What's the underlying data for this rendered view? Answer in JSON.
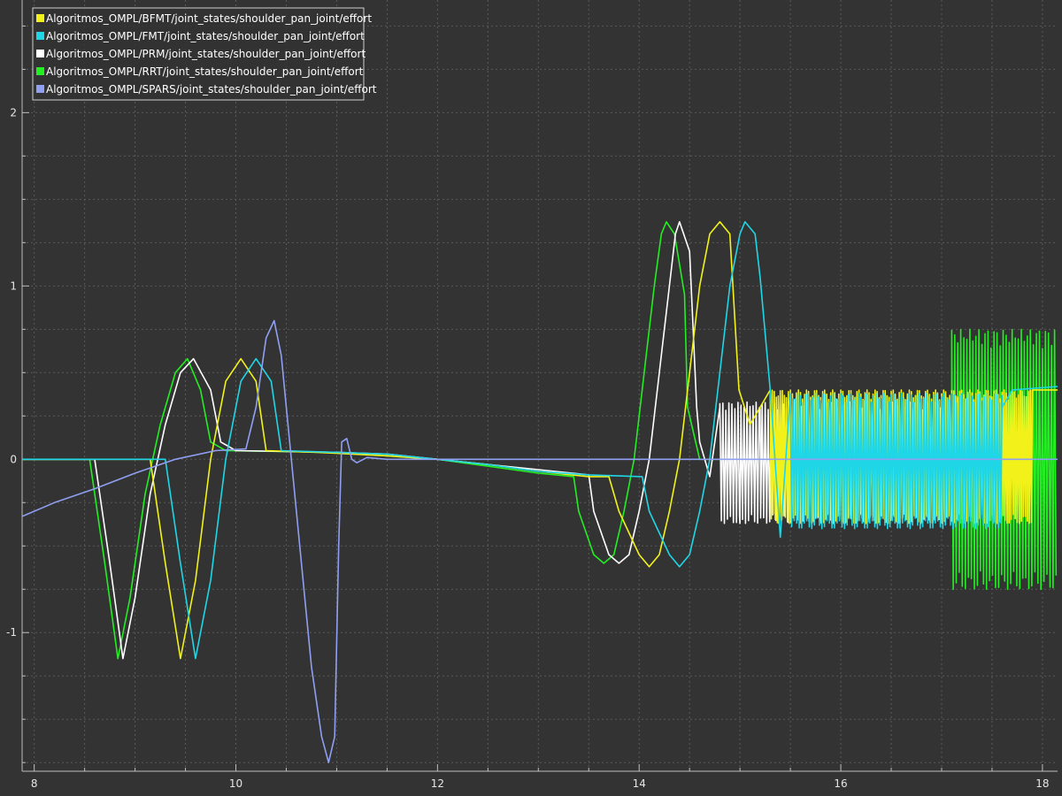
{
  "chart_data": {
    "type": "line",
    "title": "",
    "xlabel": "",
    "ylabel": "",
    "xlim": [
      7.88,
      18.15
    ],
    "ylim": [
      -1.8,
      2.65
    ],
    "x_ticks": [
      8,
      10,
      12,
      14,
      16,
      18
    ],
    "x_tick_labels": [
      "8",
      "10",
      "12",
      "14",
      "16",
      "18"
    ],
    "y_ticks": [
      -1,
      0,
      1,
      2
    ],
    "y_tick_labels": [
      "-1",
      "0",
      "1",
      "2"
    ],
    "grid": true,
    "legend_position": "top-left",
    "colors": {
      "background": "#333333",
      "grid": "#5a5a5a",
      "axis": "#bdbdbd",
      "legend_border": "#cfcfcf"
    },
    "series": [
      {
        "name": "Algoritmos_OMPL/BFMT/joint_states/shoulder_pan_joint/effort",
        "color": "#f2f21a",
        "points": [
          [
            7.88,
            0
          ],
          [
            9.15,
            0
          ],
          [
            9.3,
            -0.6
          ],
          [
            9.45,
            -1.15
          ],
          [
            9.6,
            -0.7
          ],
          [
            9.75,
            0
          ],
          [
            9.9,
            0.45
          ],
          [
            10.05,
            0.58
          ],
          [
            10.2,
            0.45
          ],
          [
            10.3,
            0.05
          ],
          [
            10.8,
            0.04
          ],
          [
            11.5,
            0.02
          ],
          [
            12,
            0
          ],
          [
            12.5,
            -0.03
          ],
          [
            13,
            -0.07
          ],
          [
            13.5,
            -0.1
          ],
          [
            13.7,
            -0.1
          ],
          [
            13.8,
            -0.3
          ],
          [
            14,
            -0.55
          ],
          [
            14.1,
            -0.62
          ],
          [
            14.2,
            -0.55
          ],
          [
            14.3,
            -0.3
          ],
          [
            14.4,
            0
          ],
          [
            14.5,
            0.5
          ],
          [
            14.6,
            1
          ],
          [
            14.7,
            1.3
          ],
          [
            14.8,
            1.37
          ],
          [
            14.9,
            1.3
          ],
          [
            14.99,
            0.4
          ],
          [
            15.1,
            0.2
          ],
          [
            15.3,
            0.4
          ],
          [
            17.9,
            0.4
          ],
          [
            18.15,
            0.4
          ]
        ],
        "noise": {
          "from": 15.3,
          "to": 17.9,
          "period": 0.02,
          "high": 0.4,
          "low": -0.37
        }
      },
      {
        "name": "Algoritmos_OMPL/FMT/joint_states/shoulder_pan_joint/effort",
        "color": "#1fd6e6",
        "points": [
          [
            7.88,
            0
          ],
          [
            9.3,
            0
          ],
          [
            9.45,
            -0.6
          ],
          [
            9.6,
            -1.15
          ],
          [
            9.75,
            -0.7
          ],
          [
            9.9,
            0
          ],
          [
            10.05,
            0.45
          ],
          [
            10.2,
            0.58
          ],
          [
            10.35,
            0.45
          ],
          [
            10.45,
            0.05
          ],
          [
            11,
            0.04
          ],
          [
            11.5,
            0.03
          ],
          [
            12,
            0
          ],
          [
            12.5,
            -0.03
          ],
          [
            13,
            -0.07
          ],
          [
            13.5,
            -0.09
          ],
          [
            14.03,
            -0.1
          ],
          [
            14.1,
            -0.3
          ],
          [
            14.3,
            -0.55
          ],
          [
            14.4,
            -0.62
          ],
          [
            14.5,
            -0.55
          ],
          [
            14.6,
            -0.3
          ],
          [
            14.7,
            0
          ],
          [
            14.8,
            0.5
          ],
          [
            14.9,
            1
          ],
          [
            15,
            1.3
          ],
          [
            15.05,
            1.37
          ],
          [
            15.15,
            1.3
          ],
          [
            15.2,
            1.05
          ],
          [
            15.3,
            0.4
          ],
          [
            15.4,
            -0.45
          ],
          [
            15.6,
            0.3
          ],
          [
            17.6,
            0.3
          ],
          [
            17.7,
            0.4
          ],
          [
            18.15,
            0.42
          ]
        ],
        "noise": {
          "from": 15.5,
          "to": 17.6,
          "period": 0.025,
          "high": 0.38,
          "low": -0.4
        }
      },
      {
        "name": "Algoritmos_OMPL/PRM/joint_states/shoulder_pan_joint/effort",
        "color": "#ffffff",
        "points": [
          [
            7.88,
            0
          ],
          [
            8.6,
            0
          ],
          [
            8.75,
            -0.6
          ],
          [
            8.88,
            -1.15
          ],
          [
            9.0,
            -0.8
          ],
          [
            9.15,
            -0.2
          ],
          [
            9.3,
            0.2
          ],
          [
            9.45,
            0.5
          ],
          [
            9.58,
            0.58
          ],
          [
            9.75,
            0.4
          ],
          [
            9.85,
            0.1
          ],
          [
            10,
            0.05
          ],
          [
            11,
            0.04
          ],
          [
            11.5,
            0.03
          ],
          [
            12,
            0
          ],
          [
            12.5,
            -0.03
          ],
          [
            13,
            -0.06
          ],
          [
            13.5,
            -0.09
          ],
          [
            13.55,
            -0.3
          ],
          [
            13.7,
            -0.55
          ],
          [
            13.8,
            -0.6
          ],
          [
            13.9,
            -0.55
          ],
          [
            14,
            -0.3
          ],
          [
            14.1,
            0
          ],
          [
            14.2,
            0.5
          ],
          [
            14.3,
            1
          ],
          [
            14.36,
            1.3
          ],
          [
            14.4,
            1.37
          ],
          [
            14.5,
            1.2
          ],
          [
            14.57,
            0.3
          ],
          [
            14.6,
            0.1
          ],
          [
            14.7,
            -0.1
          ],
          [
            14.8,
            0.3
          ],
          [
            15,
            -0.37
          ],
          [
            15.2,
            0.3
          ],
          [
            15.5,
            0.3
          ]
        ],
        "noise": {
          "from": 14.8,
          "to": 17.1,
          "period": 0.03,
          "high": 0.33,
          "low": -0.37
        }
      },
      {
        "name": "Algoritmos_OMPL/RRT/joint_states/shoulder_pan_joint/effort",
        "color": "#22ee22",
        "points": [
          [
            7.88,
            0
          ],
          [
            8.55,
            0
          ],
          [
            8.7,
            -0.6
          ],
          [
            8.83,
            -1.15
          ],
          [
            8.95,
            -0.8
          ],
          [
            9.1,
            -0.2
          ],
          [
            9.25,
            0.2
          ],
          [
            9.4,
            0.5
          ],
          [
            9.52,
            0.58
          ],
          [
            9.65,
            0.4
          ],
          [
            9.75,
            0.1
          ],
          [
            9.9,
            0.05
          ],
          [
            11,
            0.04
          ],
          [
            11.5,
            0.02
          ],
          [
            12,
            0
          ],
          [
            12.5,
            -0.04
          ],
          [
            13,
            -0.08
          ],
          [
            13.35,
            -0.1
          ],
          [
            13.4,
            -0.3
          ],
          [
            13.55,
            -0.55
          ],
          [
            13.65,
            -0.6
          ],
          [
            13.75,
            -0.55
          ],
          [
            13.85,
            -0.3
          ],
          [
            13.95,
            0
          ],
          [
            14.05,
            0.5
          ],
          [
            14.15,
            1
          ],
          [
            14.22,
            1.3
          ],
          [
            14.27,
            1.37
          ],
          [
            14.35,
            1.3
          ],
          [
            14.45,
            0.95
          ],
          [
            14.48,
            0.3
          ],
          [
            14.6,
            0
          ],
          [
            15.3,
            0
          ],
          [
            17.1,
            0.2
          ]
        ],
        "noise": {
          "from": 17.1,
          "to": 18.15,
          "period": 0.03,
          "high": 0.75,
          "low": -0.75
        }
      },
      {
        "name": "Algoritmos_OMPL/SPARS/joint_states/shoulder_pan_joint/effort",
        "color": "#8f9ff2",
        "points": [
          [
            7.88,
            -0.33
          ],
          [
            8.2,
            -0.25
          ],
          [
            8.6,
            -0.17
          ],
          [
            9,
            -0.08
          ],
          [
            9.4,
            0
          ],
          [
            9.8,
            0.05
          ],
          [
            10.1,
            0.06
          ],
          [
            10.2,
            0.3
          ],
          [
            10.3,
            0.7
          ],
          [
            10.38,
            0.8
          ],
          [
            10.45,
            0.6
          ],
          [
            10.55,
            0
          ],
          [
            10.65,
            -0.6
          ],
          [
            10.75,
            -1.2
          ],
          [
            10.85,
            -1.6
          ],
          [
            10.92,
            -1.75
          ],
          [
            10.98,
            -1.6
          ],
          [
            11.02,
            -0.5
          ],
          [
            11.05,
            0.1
          ],
          [
            11.1,
            0.12
          ],
          [
            11.15,
            0
          ],
          [
            11.2,
            -0.02
          ],
          [
            11.3,
            0.01
          ],
          [
            11.5,
            0
          ],
          [
            18.15,
            0
          ]
        ]
      }
    ]
  }
}
